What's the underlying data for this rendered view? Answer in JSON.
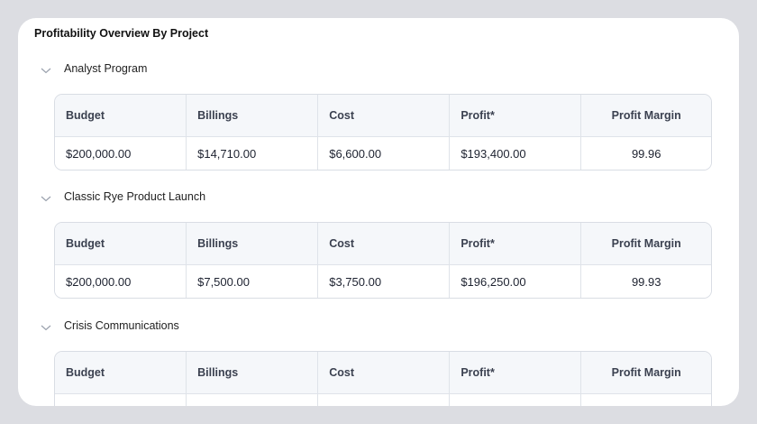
{
  "title": "Profitability Overview By Project",
  "columns": [
    "Budget",
    "Billings",
    "Cost",
    "Profit*",
    "Profit Margin"
  ],
  "projects": [
    {
      "name": "Analyst Program",
      "row": [
        "$200,000.00",
        "$14,710.00",
        "$6,600.00",
        "$193,400.00",
        "99.96"
      ]
    },
    {
      "name": "Classic Rye Product Launch",
      "row": [
        "$200,000.00",
        "$7,500.00",
        "$3,750.00",
        "$196,250.00",
        "99.93"
      ]
    },
    {
      "name": "Crisis Communications",
      "row": [
        "",
        "",
        "",
        "",
        ""
      ]
    }
  ],
  "icons": {
    "expand": "chevron-down-icon"
  },
  "colors": {
    "header_bg": "#f5f7fa",
    "border": "#d9dde4",
    "frame": "#dcdde2"
  }
}
